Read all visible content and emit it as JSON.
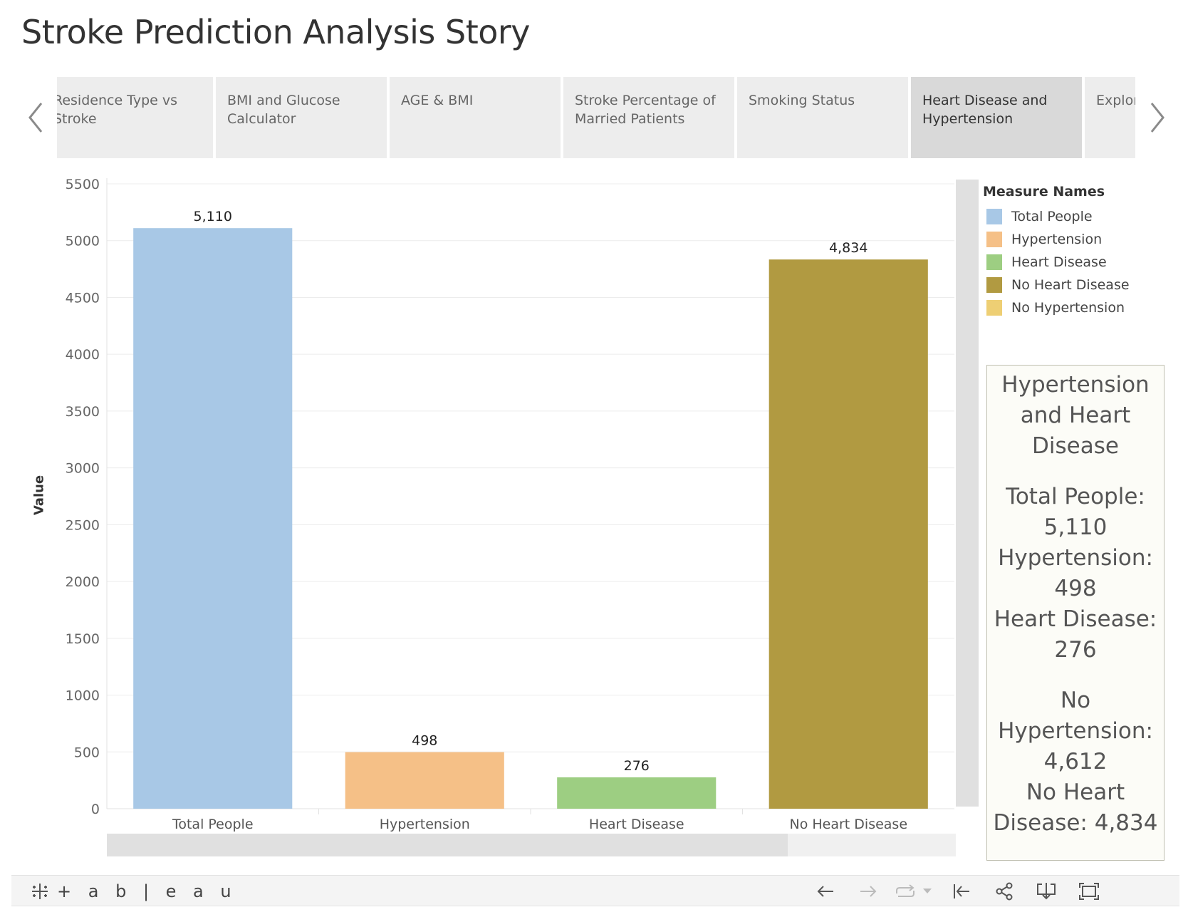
{
  "story": {
    "title": "Stroke Prediction Analysis Story",
    "tabs": [
      {
        "label": "Residence Type vs Stroke",
        "active": false
      },
      {
        "label": "BMI and Glucose Calculator",
        "active": false
      },
      {
        "label": "AGE & BMI",
        "active": false
      },
      {
        "label": "Stroke Percentage of Married Patients",
        "active": false
      },
      {
        "label": "Smoking Status",
        "active": false
      },
      {
        "label": "Heart Disease and Hypertension",
        "active": true
      },
      {
        "label": "Explora",
        "active": false
      }
    ]
  },
  "chart_data": {
    "type": "bar",
    "categories": [
      "Total People",
      "Hypertension",
      "Heart Disease",
      "No Heart Disease"
    ],
    "values": [
      5110,
      498,
      276,
      4834
    ],
    "data_labels": [
      "5,110",
      "498",
      "276",
      "4,834"
    ],
    "colors": [
      "#a8c8e6",
      "#f5c087",
      "#9dce82",
      "#b19a41"
    ],
    "title": "",
    "xlabel": "",
    "ylabel": "Value",
    "ylim": [
      0,
      5500
    ],
    "yticks": [
      0,
      500,
      1000,
      1500,
      2000,
      2500,
      3000,
      3500,
      4000,
      4500,
      5000,
      5500
    ],
    "grid": true,
    "legend_position": "right"
  },
  "legend": {
    "title": "Measure Names",
    "items": [
      {
        "label": "Total People",
        "color": "#a8c8e6"
      },
      {
        "label": "Hypertension",
        "color": "#f5c087"
      },
      {
        "label": "Heart Disease",
        "color": "#9dce82"
      },
      {
        "label": "No Heart Disease",
        "color": "#b19a41"
      },
      {
        "label": "No Hypertension",
        "color": "#eecf74"
      }
    ]
  },
  "summary": {
    "lines": [
      "Hypertension",
      "and Heart",
      "Disease",
      "",
      "Total People:",
      "5,110",
      "Hypertension:",
      "498",
      "Heart Disease:",
      "276",
      "",
      "No",
      "Hypertension:",
      "4,612",
      "No Heart",
      "Disease: 4,834"
    ]
  },
  "footer": {
    "logo_text": "+ a b | e a u",
    "icons": [
      "undo-icon",
      "redo-icon",
      "revert-icon",
      "dropdown-icon",
      "reset-icon",
      "share-icon",
      "download-icon",
      "fullscreen-icon"
    ]
  }
}
